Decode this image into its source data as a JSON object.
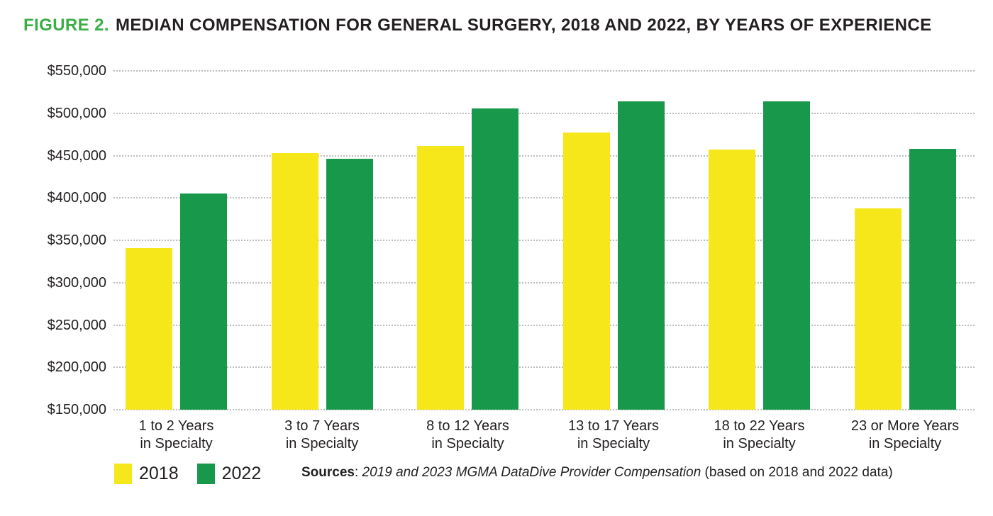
{
  "title": {
    "prefix": "FIGURE 2.",
    "text": "MEDIAN COMPENSATION FOR GENERAL SURGERY, 2018 AND 2022, BY YEARS OF EXPERIENCE"
  },
  "colors": {
    "title_accent": "#3CAE47",
    "bar_2018": "#F5E71A",
    "bar_2022": "#17984A",
    "gridline": "#BDBDBD",
    "text": "#231F20"
  },
  "legend": [
    {
      "label": "2018",
      "color": "#F5E71A"
    },
    {
      "label": "2022",
      "color": "#17984A"
    }
  ],
  "sources": {
    "label": "Sources",
    "separator": ": ",
    "italic": "2019 and 2023 MGMA DataDive Provider Compensation",
    "suffix": " (based on 2018 and 2022 data)"
  },
  "chart_data": {
    "type": "bar",
    "title": "FIGURE 2. MEDIAN COMPENSATION FOR GENERAL SURGERY, 2018 AND 2022, BY YEARS OF EXPERIENCE",
    "categories": [
      "1 to 2 Years\nin Specialty",
      "3 to 7 Years\nin Specialty",
      "8 to 12 Years\nin Specialty",
      "13 to 17 Years\nin Specialty",
      "18 to 22 Years\nin Specialty",
      "23 or More Years\nin Specialty"
    ],
    "series": [
      {
        "name": "2018",
        "color": "#F5E71A",
        "values": [
          341000,
          453000,
          461000,
          477000,
          457000,
          388000
        ]
      },
      {
        "name": "2022",
        "color": "#17984A",
        "values": [
          405000,
          446000,
          506000,
          514000,
          514000,
          458000
        ]
      }
    ],
    "xlabel": "",
    "ylabel": "",
    "ylim": [
      150000,
      550000
    ],
    "ytick_step": 50000,
    "ytick_labels": [
      "$550,000",
      "$500,000",
      "$450,000",
      "$400,000",
      "$350,000",
      "$300,000",
      "$250,000",
      "$200,000",
      "$150,000"
    ],
    "grid": "horizontal-dotted",
    "legend_position": "bottom-left"
  }
}
